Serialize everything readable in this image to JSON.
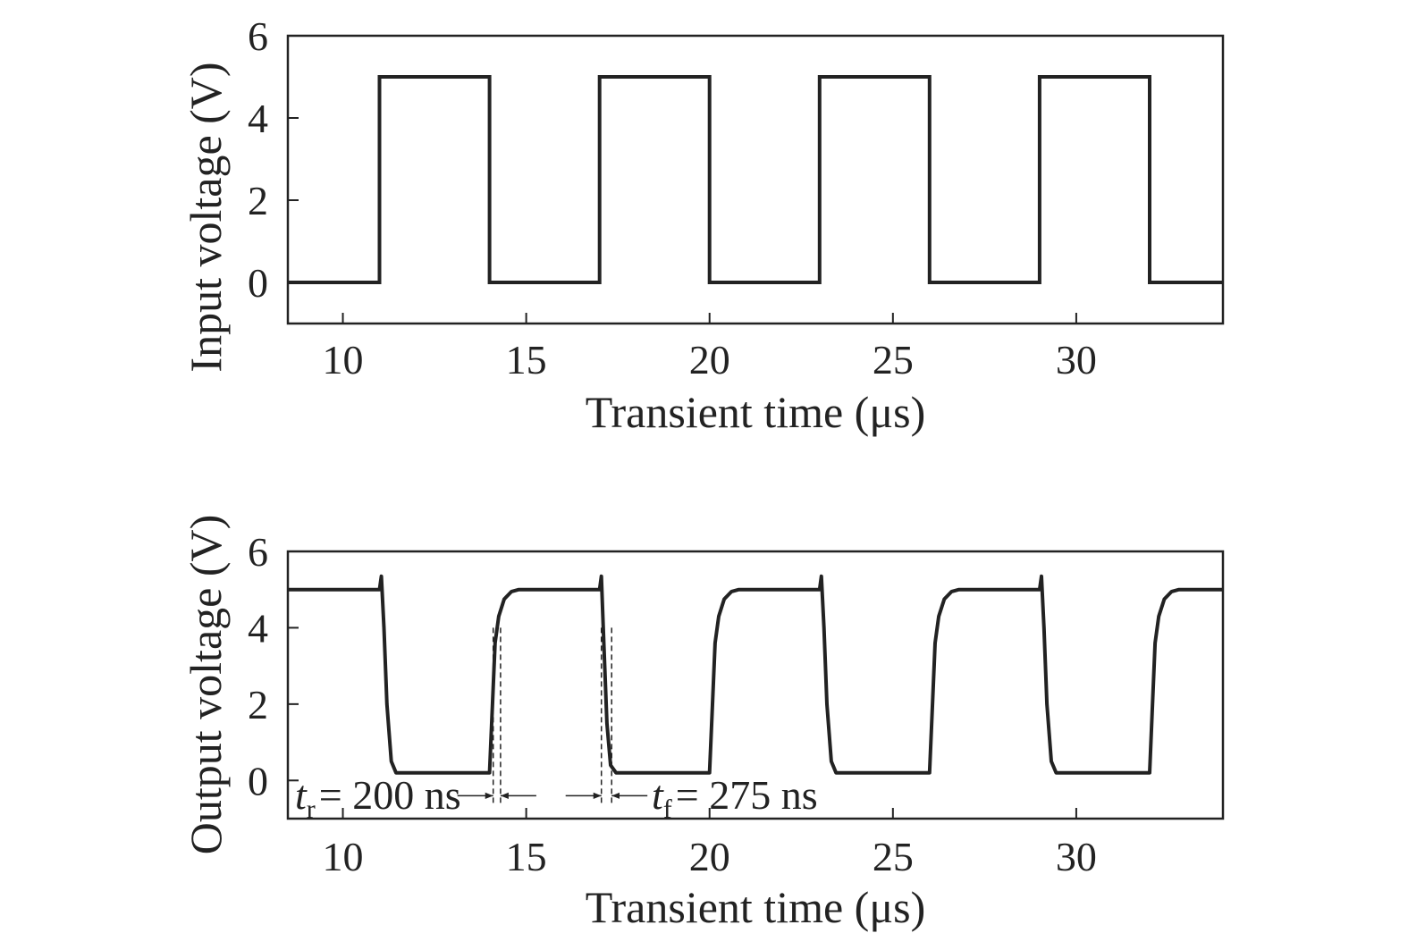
{
  "chart_data": [
    {
      "type": "line",
      "xlabel": "Transient time (μs)",
      "ylabel": "Input voltage (V)",
      "xlim": [
        8.5,
        34
      ],
      "ylim": [
        -1,
        6
      ],
      "xticks": [
        10,
        15,
        20,
        25,
        30
      ],
      "xtick_labels": [
        "10",
        "15",
        "20",
        "25",
        "30"
      ],
      "yticks": [
        0,
        2,
        4,
        6
      ],
      "ytick_labels": [
        "0",
        "2",
        "4",
        "6"
      ],
      "grid": false,
      "color": "#222222",
      "series": [
        {
          "x": [
            8.5,
            11.0,
            11.0,
            14.0,
            14.0,
            17.0,
            17.0,
            20.0,
            20.0,
            23.0,
            23.0,
            26.0,
            26.0,
            29.0,
            29.0,
            32.0,
            32.0,
            34.0
          ],
          "y": [
            0,
            0,
            5,
            5,
            0,
            0,
            5,
            5,
            0,
            0,
            5,
            5,
            0,
            0,
            5,
            5,
            0,
            0
          ]
        }
      ]
    },
    {
      "type": "line",
      "xlabel": "Transient time (μs)",
      "ylabel": "Output voltage (V)",
      "xlim": [
        8.5,
        34
      ],
      "ylim": [
        -1,
        6
      ],
      "xticks": [
        10,
        15,
        20,
        25,
        30
      ],
      "xtick_labels": [
        "10",
        "15",
        "20",
        "25",
        "30"
      ],
      "yticks": [
        0,
        2,
        4,
        6
      ],
      "ytick_labels": [
        "0",
        "2",
        "4",
        "6"
      ],
      "grid": false,
      "color": "#222222",
      "series": [
        {
          "x": [
            8.5,
            11.0,
            11.05,
            11.12,
            11.2,
            11.32,
            11.45,
            14.0,
            14.08,
            14.15,
            14.25,
            14.4,
            14.6,
            14.8,
            15.0,
            17.0,
            17.05,
            17.12,
            17.2,
            17.3,
            17.45,
            20.0,
            20.08,
            20.15,
            20.25,
            20.4,
            20.6,
            20.8,
            21.0,
            23.0,
            23.05,
            23.12,
            23.2,
            23.32,
            23.45,
            26.0,
            26.08,
            26.15,
            26.25,
            26.4,
            26.6,
            26.8,
            27.0,
            29.0,
            29.05,
            29.12,
            29.2,
            29.32,
            29.45,
            32.0,
            32.08,
            32.15,
            32.25,
            32.4,
            32.6,
            32.8,
            33.0,
            34.0
          ],
          "y": [
            5.0,
            5.0,
            5.35,
            4.0,
            2.0,
            0.5,
            0.2,
            0.2,
            2.0,
            3.6,
            4.3,
            4.75,
            4.95,
            5.0,
            5.0,
            5.0,
            5.35,
            3.5,
            1.5,
            0.4,
            0.2,
            0.2,
            2.0,
            3.6,
            4.3,
            4.75,
            4.95,
            5.0,
            5.0,
            5.0,
            5.35,
            4.0,
            2.0,
            0.5,
            0.2,
            0.2,
            2.0,
            3.6,
            4.3,
            4.75,
            4.95,
            5.0,
            5.0,
            5.0,
            5.35,
            4.0,
            2.0,
            0.5,
            0.2,
            0.2,
            2.0,
            3.6,
            4.3,
            4.75,
            4.95,
            5.0,
            5.0,
            5.0
          ]
        }
      ],
      "annotations": [
        {
          "symbol": "t",
          "subscript": "r",
          "value": "= 200 ns",
          "marker_x": [
            14.1,
            14.3
          ],
          "arrow_y": -0.4
        },
        {
          "symbol": "t",
          "subscript": "f",
          "value": "= 275 ns",
          "marker_x": [
            17.05,
            17.33
          ],
          "arrow_y": -0.4
        }
      ]
    }
  ]
}
